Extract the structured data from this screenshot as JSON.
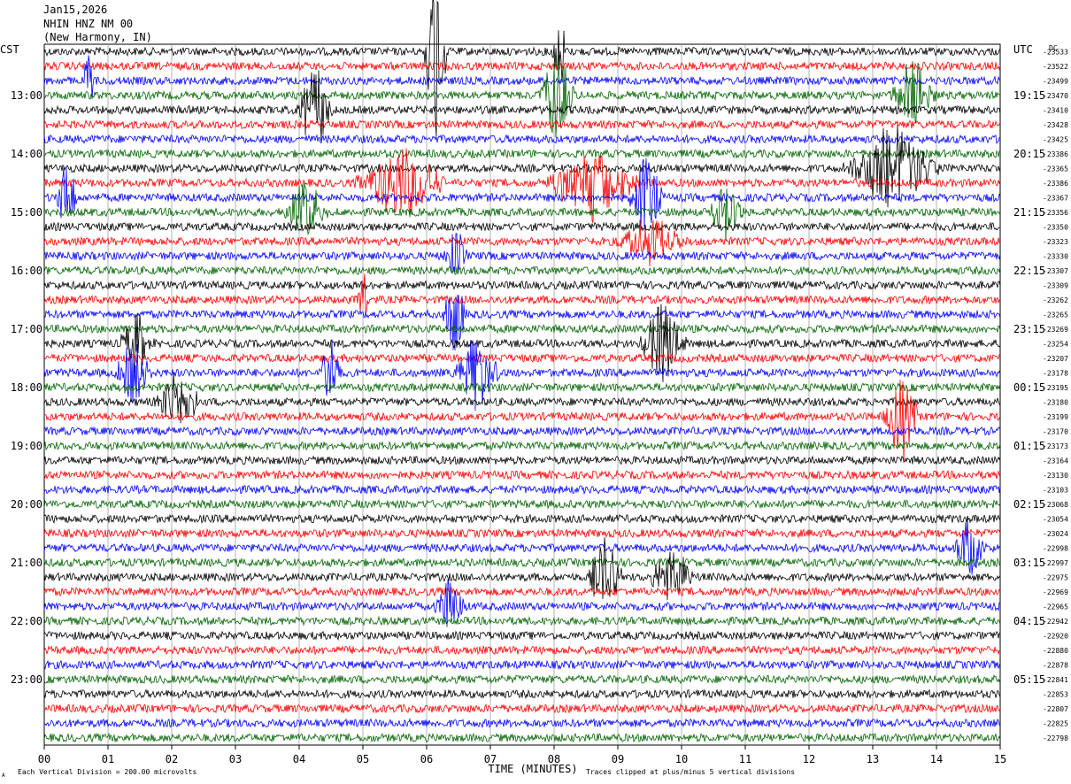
{
  "header": {
    "date": "Jan15,2026",
    "station": "NHIN HNZ NM 00",
    "location": "(New Harmony, IN)"
  },
  "axes": {
    "left_tz": "CST",
    "right_tz": "UTC",
    "xlabel": "TIME (MINUTES)",
    "left_hour_labels": [
      "13:00",
      "14:00",
      "15:00",
      "16:00",
      "17:00",
      "18:00",
      "19:00",
      "20:00",
      "21:00",
      "22:00",
      "23:00"
    ],
    "right_hour_labels": [
      "19:15",
      "20:15",
      "21:15",
      "22:15",
      "23:15",
      "00:15",
      "01:15",
      "02:15",
      "03:15",
      "04:15",
      "05:15"
    ],
    "x_ticks": [
      "00",
      "01",
      "02",
      "03",
      "04",
      "05",
      "06",
      "07",
      "08",
      "09",
      "10",
      "11",
      "12",
      "13",
      "14",
      "15"
    ],
    "right_trace_values": [
      "-23533",
      "-23522",
      "-23499",
      "-23470",
      "-23410",
      "-23428",
      "-23425",
      "-23386",
      "-23365",
      "-23386",
      "-23367",
      "-23356",
      "-23350",
      "-23323",
      "-23330",
      "-23307",
      "-23309",
      "-23262",
      "-23265",
      "-23269",
      "-23254",
      "-23207",
      "-23178",
      "-23195",
      "-23180",
      "-23199",
      "-23170",
      "-23173",
      "-23164",
      "-23130",
      "-23103",
      "-23068",
      "-23054",
      "-23024",
      "-22998",
      "-22997",
      "-22975",
      "-22969",
      "-22965",
      "-22942",
      "-22920",
      "-22880",
      "-22878",
      "-22841",
      "-22853",
      "-22807",
      "-22825",
      "-22798"
    ],
    "dc_label": "DC"
  },
  "footer": {
    "scale_note": "Each Vertical Division =  200.00 microvolts",
    "clip_note": "Traces clipped at plus/minus 5 vertical divisions",
    "corner_mark": "A"
  },
  "colors": {
    "trace_cycle": [
      "#000000",
      "#ff0000",
      "#0000ff",
      "#006400"
    ],
    "grid": "#808080"
  },
  "chart_data": {
    "type": "line",
    "title": "NHIN HNZ NM 00",
    "xlabel": "TIME (MINUTES)",
    "xlim": [
      0,
      15
    ],
    "trace_count": 48,
    "minutes_per_trace": 15,
    "start_cst": "12:15",
    "events": [
      {
        "trace": 0,
        "minute": 6.15,
        "amp": 6.0,
        "dur": 0.2
      },
      {
        "trace": 0,
        "minute": 8.1,
        "amp": 2.5,
        "dur": 0.15
      },
      {
        "trace": 2,
        "minute": 0.7,
        "amp": 2.0,
        "dur": 0.1
      },
      {
        "trace": 3,
        "minute": 8.05,
        "amp": 3.0,
        "dur": 0.3
      },
      {
        "trace": 3,
        "minute": 13.65,
        "amp": 2.5,
        "dur": 0.4
      },
      {
        "trace": 4,
        "minute": 4.25,
        "amp": 3.0,
        "dur": 0.3
      },
      {
        "trace": 8,
        "minute": 13.3,
        "amp": 3.0,
        "dur": 0.8
      },
      {
        "trace": 9,
        "minute": 5.6,
        "amp": 2.5,
        "dur": 0.8
      },
      {
        "trace": 9,
        "minute": 8.6,
        "amp": 2.5,
        "dur": 0.8
      },
      {
        "trace": 10,
        "minute": 0.35,
        "amp": 2.5,
        "dur": 0.2
      },
      {
        "trace": 10,
        "minute": 9.45,
        "amp": 3.0,
        "dur": 0.3
      },
      {
        "trace": 11,
        "minute": 4.1,
        "amp": 2.0,
        "dur": 0.4
      },
      {
        "trace": 11,
        "minute": 10.7,
        "amp": 2.0,
        "dur": 0.3
      },
      {
        "trace": 13,
        "minute": 9.5,
        "amp": 1.6,
        "dur": 0.6
      },
      {
        "trace": 14,
        "minute": 6.45,
        "amp": 2.0,
        "dur": 0.2
      },
      {
        "trace": 17,
        "minute": 5.0,
        "amp": 2.0,
        "dur": 0.1
      },
      {
        "trace": 18,
        "minute": 6.45,
        "amp": 3.0,
        "dur": 0.2
      },
      {
        "trace": 20,
        "minute": 1.45,
        "amp": 2.0,
        "dur": 0.3
      },
      {
        "trace": 20,
        "minute": 9.7,
        "amp": 3.0,
        "dur": 0.4
      },
      {
        "trace": 22,
        "minute": 1.4,
        "amp": 2.5,
        "dur": 0.3
      },
      {
        "trace": 22,
        "minute": 4.5,
        "amp": 2.5,
        "dur": 0.2
      },
      {
        "trace": 22,
        "minute": 6.8,
        "amp": 2.5,
        "dur": 0.4
      },
      {
        "trace": 24,
        "minute": 2.1,
        "amp": 2.0,
        "dur": 0.4
      },
      {
        "trace": 25,
        "minute": 13.45,
        "amp": 3.0,
        "dur": 0.3
      },
      {
        "trace": 34,
        "minute": 14.5,
        "amp": 2.0,
        "dur": 0.3
      },
      {
        "trace": 36,
        "minute": 8.8,
        "amp": 2.5,
        "dur": 0.3
      },
      {
        "trace": 36,
        "minute": 9.85,
        "amp": 2.0,
        "dur": 0.4
      },
      {
        "trace": 38,
        "minute": 6.35,
        "amp": 2.0,
        "dur": 0.3
      }
    ]
  }
}
